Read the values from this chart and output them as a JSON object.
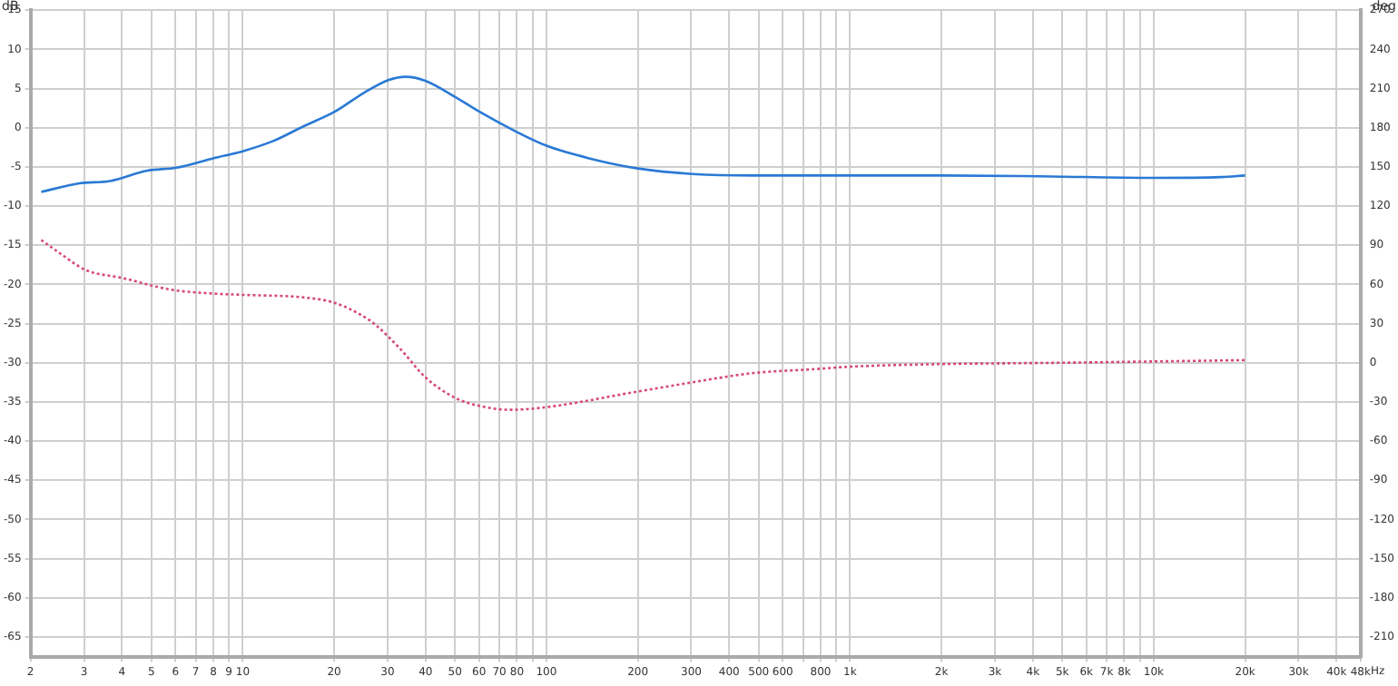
{
  "chart_data": {
    "type": "line",
    "ylabel": "dB",
    "y2label": "deg",
    "log": "x",
    "grid": true,
    "legend": false,
    "marker": "none",
    "xlim": [
      2,
      48000
    ],
    "xticks": [
      2,
      3,
      4,
      5,
      6,
      7,
      8,
      9,
      10,
      20,
      30,
      40,
      50,
      60,
      70,
      80,
      {
        "value": 90,
        "label": null
      },
      100,
      200,
      300,
      400,
      500,
      600,
      {
        "value": 700,
        "label": null
      },
      800,
      {
        "value": 900,
        "label": null
      },
      {
        "value": 1000,
        "label": "1k"
      },
      {
        "value": 2000,
        "label": "2k"
      },
      {
        "value": 3000,
        "label": "3k"
      },
      {
        "value": 4000,
        "label": "4k"
      },
      {
        "value": 5000,
        "label": "5k"
      },
      {
        "value": 6000,
        "label": "6k"
      },
      {
        "value": 7000,
        "label": "7k"
      },
      {
        "value": 8000,
        "label": "8k"
      },
      {
        "value": 9000,
        "label": null
      },
      {
        "value": 10000,
        "label": "10k"
      },
      {
        "value": 20000,
        "label": "20k"
      },
      {
        "value": 30000,
        "label": "30k"
      },
      {
        "value": 40000,
        "label": "40k"
      },
      {
        "value": 48000,
        "label": "48k"
      }
    ],
    "xlabel": "Hz",
    "ylim": [
      -67.5,
      15
    ],
    "yticks": [
      15,
      10,
      5,
      0,
      -5,
      -10,
      -15,
      -20,
      -25,
      -30,
      -35,
      -40,
      -45,
      -50,
      -55,
      -60,
      -65
    ],
    "y2lim": [
      -225,
      270
    ],
    "y2ticks": [
      270,
      240,
      210,
      180,
      150,
      120,
      90,
      60,
      30,
      0,
      -30,
      -60,
      -90,
      -120,
      -150,
      -180,
      -210
    ],
    "series": [
      {
        "color": "#2a7ad5",
        "line_style": "solid",
        "x": [
          2.17,
          2.9,
          3.66,
          4.82,
          6.06,
          8,
          10,
          12.6,
          15.9,
          20,
          25.2,
          30.3,
          34.4,
          39.9,
          50.2,
          60.4,
          79.5,
          100,
          138,
          200,
          302,
          475,
          1000,
          1985,
          4140,
          10000,
          16700,
          20000
        ],
        "values": [
          -8.2,
          -7.1,
          -6.8,
          -5.5,
          -5.1,
          -3.9,
          -3,
          -1.7,
          0.2,
          2,
          4.5,
          6.1,
          6.5,
          6,
          3.9,
          2,
          -0.5,
          -2.3,
          -3.9,
          -5.2,
          -5.9,
          -6.1,
          -6.1,
          -6.1,
          -6.2,
          -6.4,
          -6.3,
          -6.1
        ]
      },
      {
        "color": "#d8487a",
        "line_style": "dotted",
        "axis": "y2",
        "x": [
          2.17,
          2.53,
          3.04,
          4,
          5.79,
          8,
          10,
          15.9,
          20,
          25.2,
          27.7,
          33.2,
          39.9,
          50.2,
          63,
          75.9,
          100,
          200,
          302,
          475,
          750,
          1000,
          2000,
          4970,
          10000,
          20000
        ],
        "values": [
          94,
          83,
          71,
          65,
          56,
          53,
          52,
          50,
          46,
          35,
          28,
          10,
          -11,
          -27,
          -34,
          -36,
          -34,
          -22,
          -15,
          -8,
          -5,
          -3,
          -1,
          0,
          1,
          2
        ]
      }
    ]
  }
}
